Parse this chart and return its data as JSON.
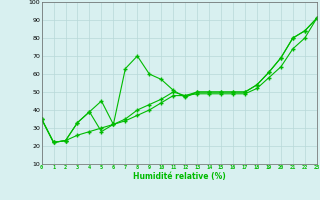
{
  "xlabel": "Humidité relative (%)",
  "background_color": "#d8f0f0",
  "grid_color": "#b8d8d8",
  "line_color": "#00bb00",
  "x": [
    0,
    1,
    2,
    3,
    4,
    5,
    6,
    7,
    8,
    9,
    10,
    11,
    12,
    13,
    14,
    15,
    16,
    17,
    18,
    19,
    20,
    21,
    22,
    23
  ],
  "series1": [
    35,
    22,
    23,
    33,
    39,
    45,
    32,
    63,
    70,
    60,
    57,
    51,
    47,
    50,
    50,
    50,
    50,
    50,
    54,
    61,
    69,
    80,
    84,
    91
  ],
  "series2": [
    35,
    22,
    23,
    33,
    39,
    28,
    32,
    35,
    40,
    43,
    46,
    50,
    48,
    50,
    50,
    50,
    50,
    50,
    54,
    61,
    69,
    80,
    84,
    91
  ],
  "series3": [
    35,
    22,
    23,
    26,
    28,
    30,
    32,
    34,
    37,
    40,
    44,
    48,
    48,
    49,
    49,
    49,
    49,
    49,
    52,
    58,
    64,
    74,
    80,
    91
  ],
  "ylim": [
    10,
    100
  ],
  "xlim": [
    0,
    23
  ],
  "yticks": [
    10,
    20,
    30,
    40,
    50,
    60,
    70,
    80,
    90,
    100
  ],
  "xticks": [
    0,
    1,
    2,
    3,
    4,
    5,
    6,
    7,
    8,
    9,
    10,
    11,
    12,
    13,
    14,
    15,
    16,
    17,
    18,
    19,
    20,
    21,
    22,
    23
  ],
  "xtick_labels": [
    "0",
    "1",
    "2",
    "3",
    "4",
    "5",
    "6",
    "7",
    "8",
    "9",
    "10",
    "11",
    "12",
    "13",
    "14",
    "15",
    "16",
    "17",
    "18",
    "19",
    "20",
    "21",
    "22",
    "23"
  ]
}
